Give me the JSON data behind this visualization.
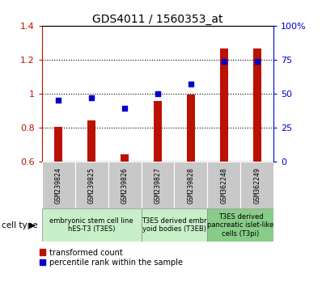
{
  "title": "GDS4011 / 1560353_at",
  "samples": [
    "GSM239824",
    "GSM239825",
    "GSM239826",
    "GSM239827",
    "GSM239828",
    "GSM362248",
    "GSM362249"
  ],
  "red_values": [
    0.807,
    0.843,
    0.643,
    0.957,
    0.997,
    1.265,
    1.268
  ],
  "blue_pct": [
    45,
    47,
    39,
    50,
    57,
    74,
    74
  ],
  "ylim_left": [
    0.6,
    1.4
  ],
  "ylim_right": [
    0,
    100
  ],
  "yticks_left": [
    0.6,
    0.8,
    1.0,
    1.2,
    1.4
  ],
  "yticks_right": [
    0,
    25,
    50,
    75,
    100
  ],
  "ytick_labels_left": [
    "0.6",
    "0.8",
    "1",
    "1.2",
    "1.4"
  ],
  "ytick_labels_right": [
    "0",
    "25",
    "50",
    "75",
    "100%"
  ],
  "hlines": [
    0.8,
    1.0,
    1.2
  ],
  "bar_color": "#bb1100",
  "dot_color": "#0000cc",
  "bar_width": 0.25,
  "dot_size": 22,
  "cell_type_groups": [
    {
      "label": "embryonic stem cell line\nhES-T3 (T3ES)",
      "start": 0,
      "end": 2,
      "color": "#c8f0c8"
    },
    {
      "label": "T3ES derived embr\nyoid bodies (T3EB)",
      "start": 3,
      "end": 4,
      "color": "#c8f0c8"
    },
    {
      "label": "T3ES derived\npancreatic islet-like\ncells (T3pi)",
      "start": 5,
      "end": 6,
      "color": "#88cc88"
    }
  ],
  "legend_labels": [
    "transformed count",
    "percentile rank within the sample"
  ],
  "legend_colors": [
    "#bb1100",
    "#0000cc"
  ],
  "cell_type_label": "cell type",
  "sample_box_color": "#c8c8c8",
  "title_fontsize": 10,
  "tick_fontsize": 8,
  "sample_fontsize": 6,
  "group_fontsize": 6,
  "legend_fontsize": 7
}
